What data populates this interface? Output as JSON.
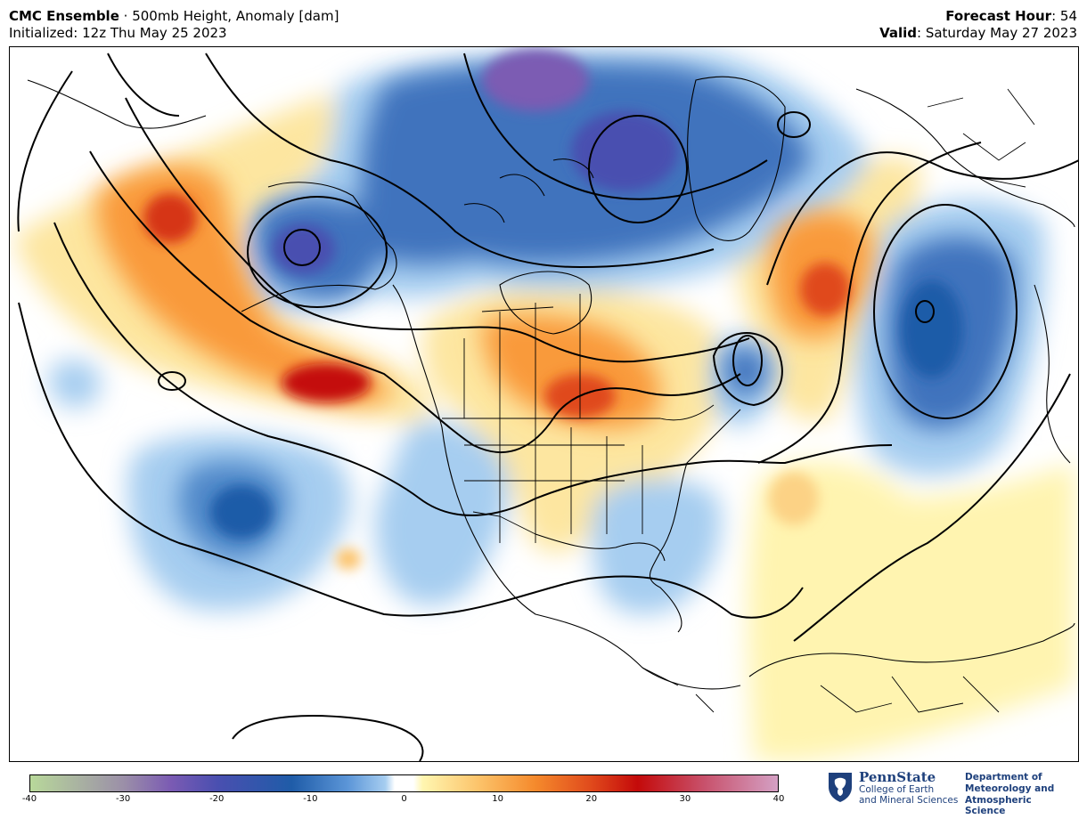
{
  "header": {
    "model": "CMC Ensemble",
    "separator": " · ",
    "product": "500mb Height, Anomaly [dam]",
    "initialized_label": "Initialized: ",
    "initialized_value": "12z Thu May 25 2023",
    "forecast_hour_label": "Forecast Hour",
    "forecast_hour_value": ": 54",
    "valid_label": "Valid",
    "valid_value": ": Saturday May 27 2023"
  },
  "colorbar": {
    "ticks": [
      "-40",
      "-30",
      "-20",
      "-10",
      "0",
      "10",
      "20",
      "30",
      "40"
    ],
    "stops": [
      {
        "value": -40,
        "color": "#b8d89a"
      },
      {
        "value": -30,
        "color": "#9b8fa8"
      },
      {
        "value": -25,
        "color": "#7b5bb3"
      },
      {
        "value": -20,
        "color": "#4a4fb0"
      },
      {
        "value": -12,
        "color": "#1f5ca8"
      },
      {
        "value": -6,
        "color": "#5c96d8"
      },
      {
        "value": -2,
        "color": "#a6cdf0"
      },
      {
        "value": -1,
        "color": "#ffffff"
      },
      {
        "value": 1,
        "color": "#ffffff"
      },
      {
        "value": 2,
        "color": "#fff6b0"
      },
      {
        "value": 8,
        "color": "#fcc36a"
      },
      {
        "value": 14,
        "color": "#f58a2c"
      },
      {
        "value": 20,
        "color": "#e04a1c"
      },
      {
        "value": 25,
        "color": "#c40a0a"
      },
      {
        "value": 32,
        "color": "#c8506a"
      },
      {
        "value": 40,
        "color": "#d4a0c4"
      }
    ]
  },
  "branding": {
    "university": "PennState",
    "college_line1": "College of Earth",
    "college_line2": "and Mineral Sciences",
    "dept_line1": "Department of",
    "dept_line2": "Meteorology and",
    "dept_line3": "Atmospheric Science"
  },
  "colors": {
    "negative_strong": "#1f5ca8",
    "negative_weak": "#a6cdf0",
    "positive_weak": "#fff6b0",
    "positive_strong": "#c40a0a",
    "brand": "#1e407c"
  }
}
